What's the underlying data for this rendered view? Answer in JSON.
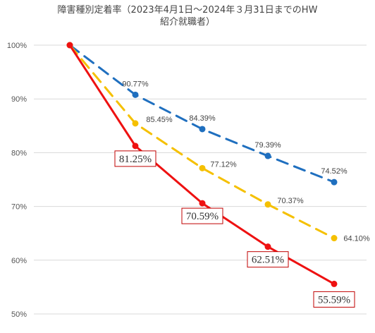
{
  "chart_data": {
    "type": "line",
    "title_line1": "障害種別定着率（2023年4月1日～2024年３月31日までのHW",
    "title_line2": "紹介就職者）",
    "xlabel": "",
    "ylabel": "",
    "x": [
      0,
      1,
      2,
      3,
      4
    ],
    "ylim": [
      50,
      100
    ],
    "yticks": [
      "100%",
      "90%",
      "80%",
      "70%",
      "60%",
      "50%"
    ],
    "grid": true,
    "series": [
      {
        "color": "#1f6fbf",
        "dash": "dashed",
        "values": [
          100,
          90.77,
          84.39,
          79.39,
          74.52
        ],
        "labels": [
          "",
          "90.77%",
          "84.39%",
          "79.39%",
          "74.52%"
        ],
        "boxed": false
      },
      {
        "color": "#f5c000",
        "dash": "dashed",
        "values": [
          100,
          85.45,
          77.12,
          70.37,
          64.1
        ],
        "labels": [
          "",
          "85.45%",
          "77.12%",
          "70.37%",
          "64.10%"
        ],
        "boxed": false
      },
      {
        "color": "#ee1111",
        "dash": "solid",
        "values": [
          100,
          81.25,
          70.59,
          62.51,
          55.59
        ],
        "labels": [
          "",
          "81.25%",
          "70.59%",
          "62.51%",
          "55.59%"
        ],
        "boxed": true
      }
    ]
  }
}
